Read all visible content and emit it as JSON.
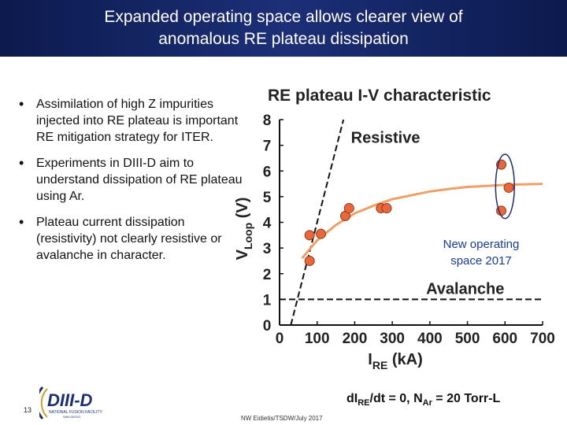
{
  "slide": {
    "title_lines": [
      "Expanded operating space allows clearer view of",
      "anomalous RE plateau dissipation"
    ],
    "bullets": [
      "Assimilation of high Z impurities injected into RE plateau is important RE mitigation strategy for ITER.",
      "Experiments in DIII-D aim to understand dissipation of RE plateau using Ar.",
      "Plateau current dissipation (resistivity) not clearly resistive or avalanche in character."
    ],
    "bullet_glyph": "•",
    "page_number": "13",
    "logo": {
      "name": "DIII-D",
      "subtitle": "NATIONAL FUSION FACILITY",
      "location": "SAN DIEGO"
    },
    "footer_credit": "NW Eidietis/TSDW/July 2017",
    "footer_equation": {
      "prefix": "dI",
      "sub1": "RE",
      "middle": "/dt = 0, N",
      "sub2": "Ar",
      "suffix": " = 20 Torr-L"
    },
    "colors": {
      "title_bg": "#14256a",
      "title_text": "#ffffff",
      "data_points": "#e9673a",
      "fit_curve": "#f0a066",
      "annotation": "#1a3a9a"
    }
  },
  "chart_data": {
    "type": "scatter",
    "title": "RE plateau I-V characteristic",
    "xlabel_main": "I",
    "xlabel_sub": "RE",
    "xlabel_unit": " (kA)",
    "ylabel_main": "V",
    "ylabel_sub": "Loop",
    "ylabel_unit": " (V)",
    "xlim": [
      0,
      700
    ],
    "ylim": [
      0,
      8
    ],
    "x_ticks": [
      0,
      100,
      200,
      300,
      400,
      500,
      600,
      700
    ],
    "y_ticks": [
      0,
      1,
      2,
      3,
      4,
      5,
      6,
      7,
      8
    ],
    "grid": false,
    "points": [
      {
        "x": 80,
        "y": 2.5
      },
      {
        "x": 80,
        "y": 3.5
      },
      {
        "x": 110,
        "y": 3.55
      },
      {
        "x": 175,
        "y": 4.25
      },
      {
        "x": 185,
        "y": 4.55
      },
      {
        "x": 270,
        "y": 4.55
      },
      {
        "x": 285,
        "y": 4.55
      },
      {
        "x": 590,
        "y": 4.45
      },
      {
        "x": 590,
        "y": 6.25
      },
      {
        "x": 610,
        "y": 5.35
      }
    ],
    "fit_curve": {
      "x": [
        60,
        100,
        150,
        200,
        250,
        300,
        350,
        400,
        450,
        500,
        550,
        600,
        650,
        700
      ],
      "y": [
        2.6,
        3.3,
        3.9,
        4.35,
        4.65,
        4.9,
        5.05,
        5.2,
        5.3,
        5.38,
        5.42,
        5.46,
        5.48,
        5.5
      ]
    },
    "resistive_line": {
      "x": [
        30,
        170
      ],
      "y": [
        0,
        8
      ],
      "label": "Resistive"
    },
    "avalanche_line": {
      "y": 1.0,
      "label": "Avalanche"
    },
    "highlight_group": {
      "center": [
        600,
        5.4
      ],
      "rx_data": 25,
      "ry_data": 1.25
    },
    "annotation": "New operating space 2017"
  }
}
